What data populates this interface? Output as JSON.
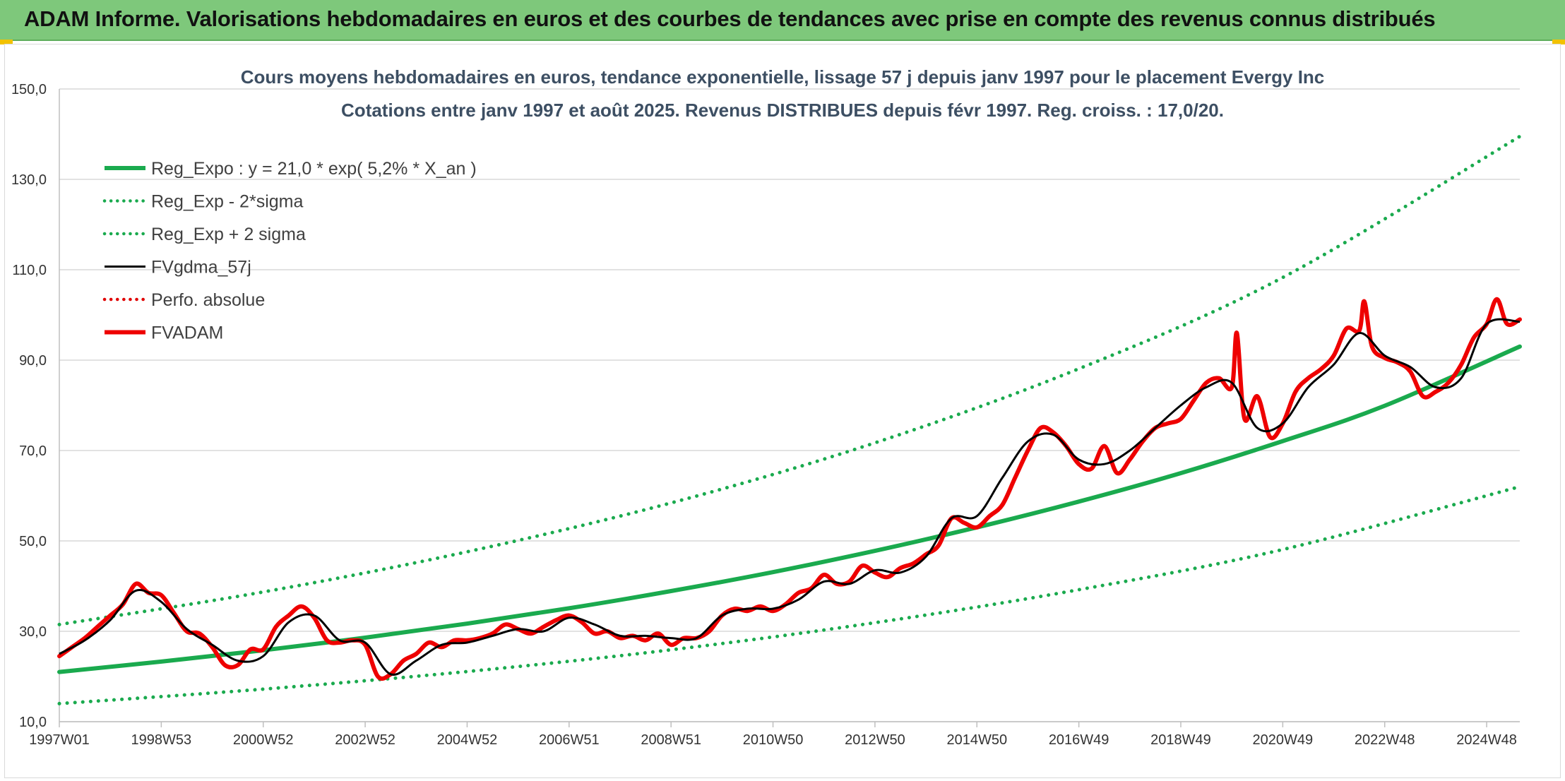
{
  "header": {
    "title": "ADAM Informe. Valorisations hebdomadaires en euros et des courbes de tendances avec prise en compte des revenus connus distribués"
  },
  "colors": {
    "banner": "#7ec87b",
    "reg_expo": "#1aaa4e",
    "sigma": "#1aaa4e",
    "fvgdma": "#000000",
    "perfo": "#e00000",
    "fvadam": "#ee0000",
    "grid": "#d9d9d9"
  },
  "chart_data": {
    "type": "line",
    "title_line1": "Cours moyens hebdomadaires en euros, tendance exponentielle, lissage 57 j depuis janv 1997 pour le placement Evergy Inc",
    "title_line2": "Cotations entre janv 1997 et août 2025. Revenus DISTRIBUES depuis févr 1997. Reg. croiss. : 17,0/20.",
    "xlabel": "",
    "ylabel": "",
    "ylim": [
      10,
      150
    ],
    "yticks": [
      "150,0",
      "130,0",
      "110,0",
      "90,0",
      "70,0",
      "50,0",
      "30,0",
      "10,0"
    ],
    "xlim": [
      1997.0,
      2025.65
    ],
    "xticks": [
      {
        "label": "1997W01",
        "x": 1997.0
      },
      {
        "label": "1998W53",
        "x": 1999.0
      },
      {
        "label": "2000W52",
        "x": 2001.0
      },
      {
        "label": "2002W52",
        "x": 2003.0
      },
      {
        "label": "2004W52",
        "x": 2005.0
      },
      {
        "label": "2006W51",
        "x": 2007.0
      },
      {
        "label": "2008W51",
        "x": 2009.0
      },
      {
        "label": "2010W50",
        "x": 2011.0
      },
      {
        "label": "2012W50",
        "x": 2013.0
      },
      {
        "label": "2014W50",
        "x": 2015.0
      },
      {
        "label": "2016W49",
        "x": 2017.0
      },
      {
        "label": "2018W49",
        "x": 2019.0
      },
      {
        "label": "2020W49",
        "x": 2021.0
      },
      {
        "label": "2022W48",
        "x": 2023.0
      },
      {
        "label": "2024W48",
        "x": 2025.0
      }
    ],
    "grid": true,
    "legend_position": "top-left",
    "series": [
      {
        "name": "Reg_Expo : y = 21,0 * exp( 5,2% *  X_an )",
        "style": "solid-thick",
        "color": "#1aaa4e",
        "x": [
          1997.0,
          1999.0,
          2001.0,
          2003.0,
          2005.0,
          2007.0,
          2009.0,
          2011.0,
          2013.0,
          2015.0,
          2017.0,
          2019.0,
          2021.0,
          2023.0,
          2025.65
        ],
        "y": [
          21.0,
          23.3,
          25.8,
          28.6,
          31.7,
          35.1,
          38.9,
          43.1,
          47.8,
          53.0,
          58.7,
          65.0,
          72.1,
          79.9,
          93.0
        ]
      },
      {
        "name": "Reg_Exp - 2*sigma",
        "style": "dotted",
        "color": "#1aaa4e",
        "x": [
          1997.0,
          2001.0,
          2005.0,
          2009.0,
          2013.0,
          2017.0,
          2021.0,
          2025.65
        ],
        "y": [
          14.0,
          17.2,
          21.1,
          25.9,
          31.9,
          39.2,
          48.1,
          62.0
        ]
      },
      {
        "name": "Reg_Exp + 2 sigma",
        "style": "dotted",
        "color": "#1aaa4e",
        "x": [
          1997.0,
          2001.0,
          2005.0,
          2009.0,
          2013.0,
          2017.0,
          2021.0,
          2025.65
        ],
        "y": [
          31.5,
          38.7,
          47.6,
          58.4,
          71.7,
          88.1,
          108.3,
          139.5
        ]
      },
      {
        "name": "FVgdma_57j",
        "style": "solid",
        "color": "#000000",
        "x": [
          1997.0,
          1997.5,
          1998.0,
          1998.5,
          1999.0,
          1999.5,
          2000.0,
          2000.5,
          2001.0,
          2001.5,
          2002.0,
          2002.5,
          2003.0,
          2003.5,
          2004.0,
          2004.5,
          2005.0,
          2005.5,
          2006.0,
          2006.5,
          2007.0,
          2007.5,
          2008.0,
          2008.5,
          2009.0,
          2009.5,
          2010.0,
          2010.5,
          2011.0,
          2011.5,
          2012.0,
          2012.5,
          2013.0,
          2013.5,
          2014.0,
          2014.5,
          2015.0,
          2015.5,
          2016.0,
          2016.5,
          2017.0,
          2017.5,
          2018.0,
          2018.5,
          2019.0,
          2019.5,
          2020.0,
          2020.5,
          2021.0,
          2021.5,
          2022.0,
          2022.5,
          2023.0,
          2023.5,
          2024.0,
          2024.5,
          2025.0,
          2025.65
        ],
        "y": [
          25.0,
          28.0,
          32.5,
          39.0,
          36.5,
          30.5,
          27.0,
          23.5,
          24.5,
          32.0,
          33.5,
          28.0,
          27.5,
          20.5,
          23.5,
          27.0,
          27.5,
          29.0,
          30.5,
          30.0,
          33.0,
          31.5,
          29.0,
          29.0,
          28.5,
          28.5,
          33.5,
          35.0,
          35.0,
          37.0,
          41.0,
          40.5,
          43.5,
          43.0,
          46.5,
          55.0,
          55.5,
          64.0,
          72.0,
          73.5,
          68.0,
          67.0,
          70.0,
          75.0,
          80.0,
          84.0,
          85.0,
          75.0,
          76.0,
          84.0,
          89.0,
          96.0,
          91.0,
          88.5,
          84.0,
          86.0,
          98.0,
          98.5
        ]
      },
      {
        "name": "Perfo. absolue",
        "style": "dotted",
        "color": "#e00000",
        "x": [],
        "y": []
      },
      {
        "name": "FVADAM",
        "style": "solid-thick",
        "color": "#ee0000",
        "x": [
          1997.0,
          1997.25,
          1997.5,
          1997.75,
          1998.0,
          1998.25,
          1998.5,
          1998.75,
          1999.0,
          1999.25,
          1999.5,
          1999.75,
          2000.0,
          2000.25,
          2000.5,
          2000.75,
          2001.0,
          2001.25,
          2001.5,
          2001.75,
          2002.0,
          2002.25,
          2002.5,
          2002.75,
          2003.0,
          2003.25,
          2003.5,
          2003.75,
          2004.0,
          2004.25,
          2004.5,
          2004.75,
          2005.0,
          2005.25,
          2005.5,
          2005.75,
          2006.0,
          2006.25,
          2006.5,
          2006.75,
          2007.0,
          2007.25,
          2007.5,
          2007.75,
          2008.0,
          2008.25,
          2008.5,
          2008.75,
          2009.0,
          2009.25,
          2009.5,
          2009.75,
          2010.0,
          2010.25,
          2010.5,
          2010.75,
          2011.0,
          2011.25,
          2011.5,
          2011.75,
          2012.0,
          2012.25,
          2012.5,
          2012.75,
          2013.0,
          2013.25,
          2013.5,
          2013.75,
          2014.0,
          2014.25,
          2014.5,
          2014.75,
          2015.0,
          2015.25,
          2015.5,
          2015.75,
          2016.0,
          2016.25,
          2016.5,
          2016.75,
          2017.0,
          2017.25,
          2017.5,
          2017.75,
          2018.0,
          2018.25,
          2018.5,
          2018.75,
          2019.0,
          2019.25,
          2019.5,
          2019.75,
          2020.0,
          2020.1,
          2020.25,
          2020.5,
          2020.75,
          2021.0,
          2021.25,
          2021.5,
          2021.75,
          2022.0,
          2022.25,
          2022.5,
          2022.6,
          2022.75,
          2023.0,
          2023.25,
          2023.5,
          2023.75,
          2024.0,
          2024.25,
          2024.5,
          2024.75,
          2025.0,
          2025.2,
          2025.4,
          2025.65
        ],
        "y": [
          24.5,
          26.5,
          28.5,
          31.0,
          33.5,
          36.0,
          40.5,
          38.5,
          38.0,
          34.0,
          30.0,
          29.5,
          26.5,
          22.5,
          22.5,
          26.0,
          26.0,
          31.0,
          33.5,
          35.5,
          33.0,
          28.0,
          27.5,
          28.0,
          27.0,
          20.0,
          20.5,
          23.5,
          25.0,
          27.5,
          26.5,
          28.0,
          28.0,
          28.5,
          29.5,
          31.5,
          30.5,
          29.5,
          31.0,
          32.5,
          33.5,
          32.0,
          29.5,
          30.0,
          28.5,
          29.0,
          28.0,
          29.5,
          27.0,
          28.5,
          28.5,
          30.0,
          33.5,
          35.0,
          34.5,
          35.5,
          34.5,
          36.0,
          38.5,
          39.5,
          42.5,
          40.5,
          41.0,
          44.5,
          43.0,
          42.0,
          44.0,
          45.0,
          47.0,
          49.0,
          55.0,
          54.0,
          53.0,
          55.5,
          58.0,
          64.0,
          70.0,
          75.0,
          74.0,
          71.0,
          67.0,
          66.0,
          71.0,
          65.0,
          68.0,
          72.0,
          75.0,
          76.0,
          77.0,
          81.0,
          85.0,
          86.0,
          84.0,
          96.0,
          77.0,
          82.0,
          73.0,
          76.0,
          83.0,
          86.0,
          88.0,
          91.0,
          97.0,
          96.5,
          103.0,
          93.0,
          90.5,
          89.5,
          87.5,
          82.0,
          83.0,
          85.0,
          89.0,
          95.0,
          98.0,
          103.5,
          98.0,
          99.0
        ]
      }
    ]
  }
}
